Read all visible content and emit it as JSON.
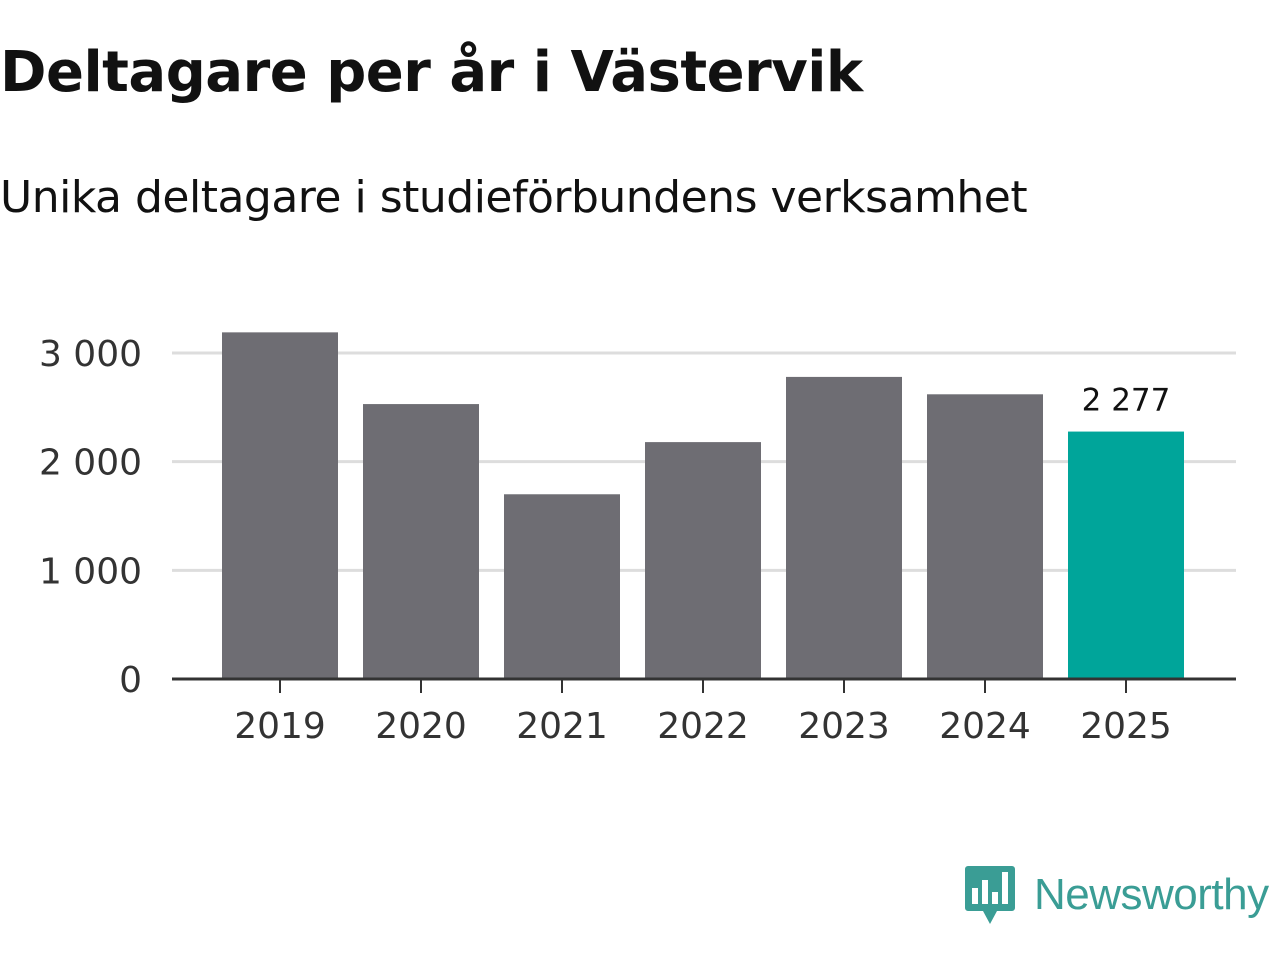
{
  "title": "Deltagare per år i Västervik",
  "subtitle": "Unika deltagare i studieförbundens verksamhet",
  "brand": {
    "name": "Newsworthy",
    "icon": "newsworthy-logo-icon",
    "color": "#3a9d95"
  },
  "chart_data": {
    "type": "bar",
    "title": "Deltagare per år i Västervik",
    "subtitle": "Unika deltagare i studieförbundens verksamhet",
    "categories": [
      "2019",
      "2020",
      "2021",
      "2022",
      "2023",
      "2024",
      "2025"
    ],
    "values": [
      3190,
      2530,
      1700,
      2180,
      2780,
      2620,
      2277
    ],
    "xlabel": "",
    "ylabel": "",
    "ylim": [
      0,
      3000
    ],
    "yticks": [
      0,
      1000,
      2000,
      3000
    ],
    "ytick_labels": [
      "0",
      "1 000",
      "2 000",
      "3 000"
    ],
    "grid": true,
    "bar_color": "#6e6d73",
    "highlight_color": "#00a59a",
    "highlight_index": 6,
    "data_labels": [
      {
        "index": 6,
        "text": "2 277"
      }
    ]
  }
}
